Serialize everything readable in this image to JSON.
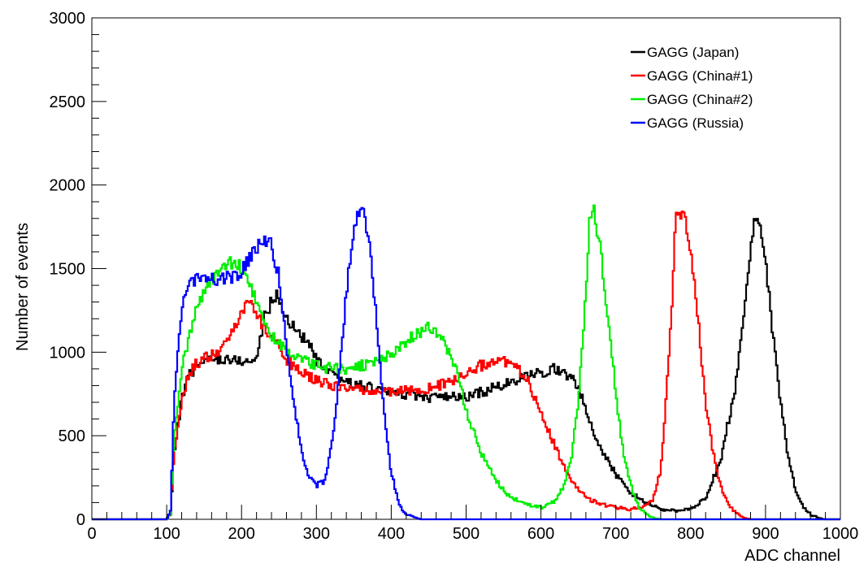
{
  "chart_data": {
    "type": "line",
    "title": "",
    "xlabel": "ADC channel",
    "ylabel": "Number of events",
    "xlim": [
      0,
      1000
    ],
    "ylim": [
      0,
      3000
    ],
    "x_ticks": [
      0,
      100,
      200,
      300,
      400,
      500,
      600,
      700,
      800,
      900,
      1000
    ],
    "y_ticks": [
      0,
      500,
      1000,
      1500,
      2000,
      2500,
      3000
    ],
    "grid": false,
    "legend_position": "top-right",
    "series": [
      {
        "name": "GAGG (Japan)",
        "color": "#000000",
        "x": [
          0,
          100,
          105,
          110,
          120,
          130,
          140,
          150,
          160,
          170,
          180,
          190,
          200,
          210,
          220,
          230,
          240,
          245,
          250,
          260,
          270,
          280,
          290,
          300,
          320,
          350,
          400,
          450,
          500,
          520,
          540,
          560,
          580,
          600,
          620,
          630,
          640,
          650,
          660,
          670,
          680,
          700,
          720,
          740,
          760,
          780,
          800,
          820,
          840,
          860,
          870,
          880,
          885,
          890,
          900,
          910,
          920,
          930,
          940,
          950,
          960,
          970,
          980,
          990,
          1000
        ],
        "y": [
          0,
          0,
          30,
          400,
          720,
          860,
          920,
          940,
          960,
          960,
          960,
          950,
          950,
          940,
          960,
          1200,
          1300,
          1340,
          1320,
          1200,
          1150,
          1100,
          1050,
          950,
          860,
          810,
          760,
          730,
          730,
          760,
          790,
          820,
          850,
          880,
          900,
          880,
          850,
          790,
          650,
          520,
          420,
          270,
          160,
          100,
          60,
          50,
          60,
          130,
          350,
          800,
          1200,
          1600,
          1820,
          1800,
          1550,
          1100,
          700,
          380,
          180,
          80,
          30,
          10,
          0,
          0,
          0
        ]
      },
      {
        "name": "GAGG (China#1)",
        "color": "#ff0000",
        "x": [
          0,
          100,
          105,
          110,
          120,
          130,
          140,
          150,
          160,
          170,
          180,
          190,
          200,
          210,
          215,
          220,
          230,
          240,
          250,
          260,
          280,
          300,
          320,
          350,
          400,
          450,
          500,
          520,
          540,
          560,
          580,
          600,
          620,
          640,
          660,
          680,
          700,
          720,
          740,
          750,
          760,
          770,
          775,
          780,
          790,
          800,
          810,
          820,
          830,
          840,
          850,
          860,
          870,
          880,
          900,
          1000
        ],
        "y": [
          0,
          0,
          30,
          400,
          720,
          870,
          930,
          960,
          980,
          1000,
          1050,
          1150,
          1250,
          1300,
          1280,
          1230,
          1150,
          1100,
          1050,
          950,
          880,
          830,
          800,
          780,
          760,
          780,
          860,
          920,
          950,
          930,
          850,
          650,
          420,
          230,
          130,
          90,
          70,
          60,
          80,
          120,
          300,
          900,
          1300,
          1800,
          1850,
          1600,
          1200,
          700,
          400,
          200,
          90,
          40,
          10,
          0,
          0,
          0
        ]
      },
      {
        "name": "GAGG (China#2)",
        "color": "#00ee00",
        "x": [
          0,
          100,
          105,
          110,
          120,
          130,
          140,
          150,
          160,
          170,
          180,
          190,
          200,
          210,
          220,
          230,
          240,
          250,
          260,
          280,
          300,
          320,
          350,
          400,
          430,
          450,
          460,
          470,
          480,
          490,
          500,
          520,
          540,
          560,
          580,
          600,
          620,
          630,
          640,
          650,
          660,
          665,
          670,
          680,
          690,
          700,
          710,
          720,
          730,
          740,
          750,
          760,
          770,
          800,
          1000
        ],
        "y": [
          0,
          0,
          30,
          500,
          900,
          1100,
          1250,
          1350,
          1420,
          1470,
          1520,
          1540,
          1500,
          1400,
          1300,
          1200,
          1100,
          1050,
          1000,
          950,
          920,
          900,
          900,
          990,
          1100,
          1150,
          1120,
          1070,
          980,
          850,
          650,
          400,
          230,
          130,
          90,
          70,
          110,
          200,
          350,
          700,
          1350,
          1800,
          1870,
          1600,
          1200,
          750,
          400,
          200,
          80,
          30,
          10,
          0,
          0,
          0,
          0
        ]
      },
      {
        "name": "GAGG (Russia)",
        "color": "#0000ff",
        "x": [
          0,
          100,
          105,
          110,
          120,
          130,
          140,
          150,
          160,
          170,
          180,
          190,
          200,
          210,
          220,
          230,
          240,
          250,
          260,
          270,
          280,
          290,
          300,
          310,
          320,
          330,
          340,
          350,
          360,
          370,
          380,
          390,
          400,
          410,
          420,
          440,
          1000
        ],
        "y": [
          0,
          0,
          50,
          700,
          1250,
          1400,
          1450,
          1450,
          1440,
          1440,
          1450,
          1450,
          1480,
          1550,
          1620,
          1680,
          1640,
          1450,
          1050,
          700,
          420,
          260,
          200,
          230,
          420,
          820,
          1350,
          1750,
          1880,
          1680,
          1200,
          650,
          280,
          90,
          30,
          0,
          0
        ]
      }
    ]
  }
}
